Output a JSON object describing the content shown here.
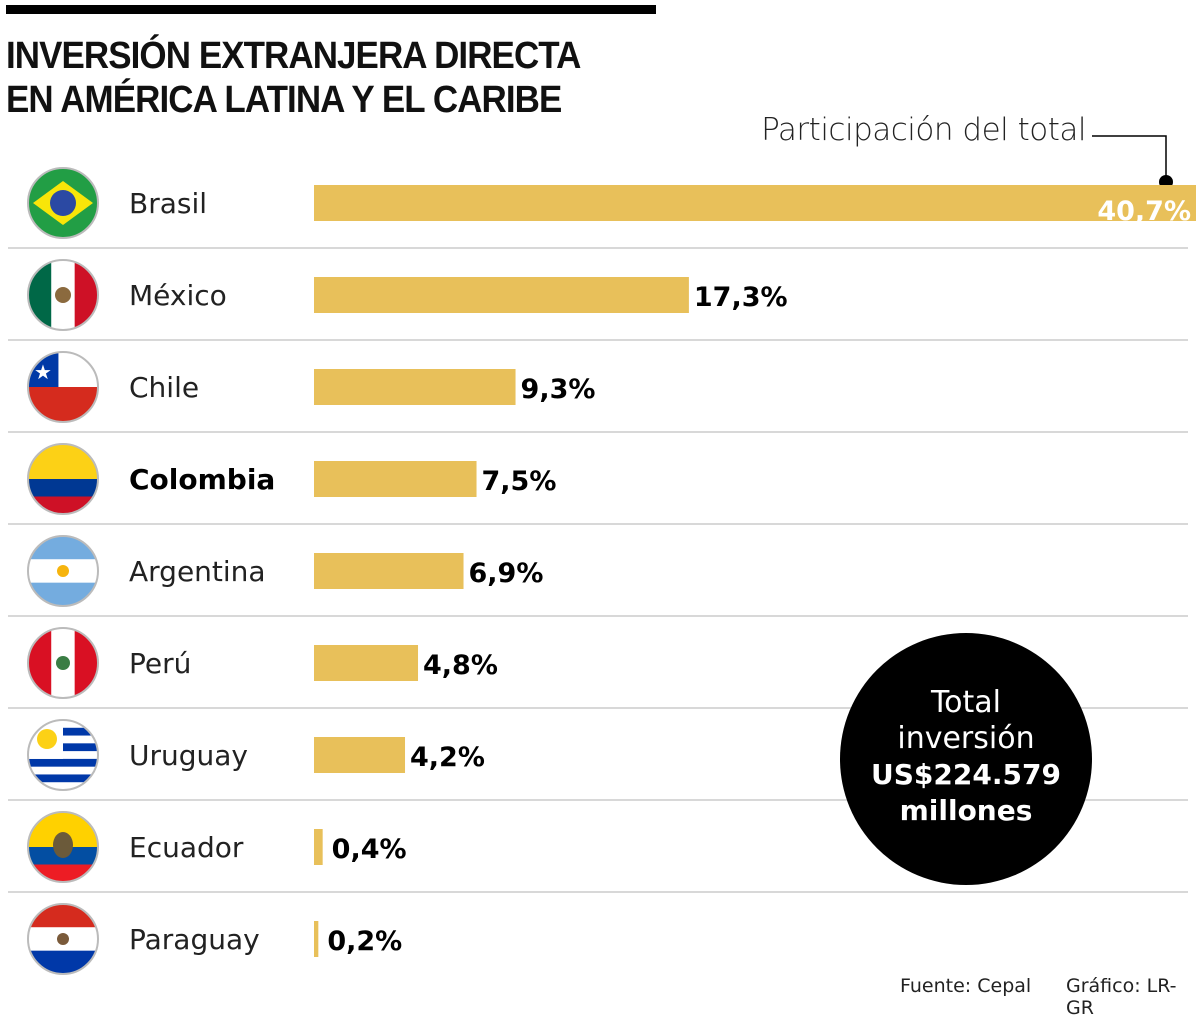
{
  "title": "INVERSIÓN EXTRANJERA DIRECTA\nEN AMÉRICA LATINA Y EL CARIBE",
  "legend_label": "Participación del total",
  "chart_data": {
    "type": "bar",
    "orientation": "horizontal",
    "title": "INVERSIÓN EXTRANJERA DIRECTA EN AMÉRICA LATINA Y EL CARIBE",
    "xlabel": "",
    "ylabel": "",
    "categories": [
      "Brasil",
      "México",
      "Chile",
      "Colombia",
      "Argentina",
      "Perú",
      "Uruguay",
      "Ecuador",
      "Paraguay"
    ],
    "values": [
      40.7,
      17.3,
      9.3,
      7.5,
      6.9,
      4.8,
      4.2,
      0.4,
      0.2
    ],
    "value_labels": [
      "40,7%",
      "17,3%",
      "9,3%",
      "7,5%",
      "6,9%",
      "4,8%",
      "4,2%",
      "0,4%",
      "0,2%"
    ],
    "highlighted_category": "Colombia",
    "flag_icons": [
      "brazil-flag-icon",
      "mexico-flag-icon",
      "chile-flag-icon",
      "colombia-flag-icon",
      "argentina-flag-icon",
      "peru-flag-icon",
      "uruguay-flag-icon",
      "ecuador-flag-icon",
      "paraguay-flag-icon"
    ],
    "bar_color": "#E8C05A",
    "grid": false
  },
  "total": {
    "line1": "Total",
    "line2": "inversión",
    "amount": "US$224.579",
    "unit": "millones"
  },
  "footer": {
    "source": "Fuente: Cepal",
    "credit": "Gráfico: LR-GR"
  }
}
